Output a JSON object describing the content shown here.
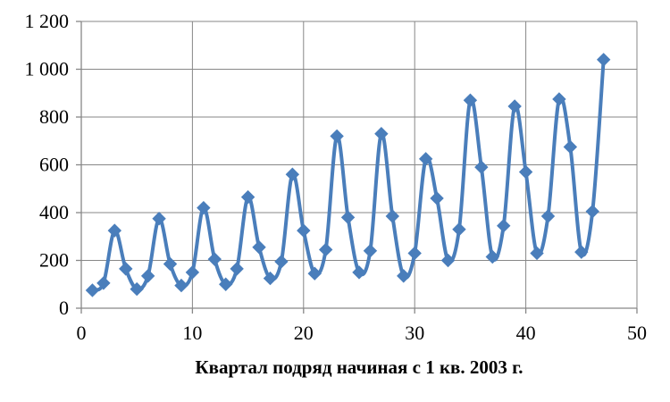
{
  "chart_data": {
    "type": "line",
    "title": "",
    "xlabel": "Квартал подряд начиная с 1 кв. 2003 г.",
    "ylabel": "",
    "xlim": [
      0,
      50
    ],
    "ylim": [
      0,
      1200
    ],
    "xticks": [
      0,
      10,
      20,
      30,
      40,
      50
    ],
    "xtick_labels": [
      "0",
      "10",
      "20",
      "30",
      "40",
      "50"
    ],
    "yticks": [
      0,
      200,
      400,
      600,
      800,
      1000,
      1200
    ],
    "ytick_labels": [
      "0",
      "200",
      "400",
      "600",
      "800",
      "1 000",
      "1 200"
    ],
    "grid": true,
    "legend": "none",
    "smooth": true,
    "marker": "diamond",
    "color": "#4a7ebb",
    "series": [
      {
        "x": [
          1,
          2,
          3,
          4,
          5,
          6,
          7,
          8,
          9,
          10,
          11,
          12,
          13,
          14,
          15,
          16,
          17,
          18,
          19,
          20,
          21,
          22,
          23,
          24,
          25,
          26,
          27,
          28,
          29,
          30,
          31,
          32,
          33,
          34,
          35,
          36,
          37,
          38,
          39,
          40,
          41,
          42,
          43,
          44,
          45,
          46,
          47
        ],
        "values": [
          75,
          105,
          325,
          165,
          80,
          135,
          375,
          185,
          95,
          150,
          420,
          205,
          100,
          165,
          465,
          255,
          125,
          195,
          560,
          325,
          145,
          245,
          720,
          380,
          150,
          240,
          730,
          385,
          135,
          230,
          625,
          460,
          200,
          330,
          870,
          590,
          215,
          345,
          845,
          570,
          230,
          385,
          875,
          675,
          235,
          405,
          1040
        ]
      }
    ]
  }
}
